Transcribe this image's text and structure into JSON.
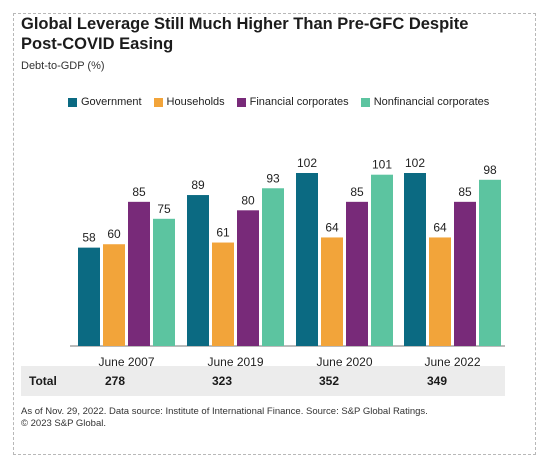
{
  "title": "Global Leverage Still Much Higher Than Pre-GFC Despite Post-COVID Easing",
  "subtitle": "Debt-to-GDP (%)",
  "legend": [
    {
      "name": "Government",
      "color": "#0b6a82"
    },
    {
      "name": "Households",
      "color": "#f2a43a"
    },
    {
      "name": "Financial corporates",
      "color": "#782a79"
    },
    {
      "name": "Nonfinancial corporates",
      "color": "#5cc4a0"
    }
  ],
  "chart_data": {
    "type": "bar",
    "title": "Global Leverage Still Much Higher Than Pre-GFC Despite Post-COVID Easing",
    "ylabel": "Debt-to-GDP (%)",
    "xlabel": "",
    "categories": [
      "June 2007",
      "June 2019",
      "June 2020",
      "June 2022"
    ],
    "series": [
      {
        "name": "Government",
        "color": "#0b6a82",
        "values": [
          58,
          89,
          102,
          102
        ]
      },
      {
        "name": "Households",
        "color": "#f2a43a",
        "values": [
          60,
          61,
          64,
          64
        ]
      },
      {
        "name": "Financial corporates",
        "color": "#782a79",
        "values": [
          85,
          80,
          85,
          85
        ]
      },
      {
        "name": "Nonfinancial corporates",
        "color": "#5cc4a0",
        "values": [
          75,
          93,
          101,
          98
        ]
      }
    ],
    "ylim": [
      0,
      102
    ],
    "grid": false,
    "legend_position": "top",
    "totals": {
      "label": "Total",
      "values": [
        278,
        323,
        352,
        349
      ]
    }
  },
  "footnote": "As of Nov. 29, 2022. Data source: Institute of International Finance. Source: S&P Global Ratings.\n© 2023 S&P Global."
}
